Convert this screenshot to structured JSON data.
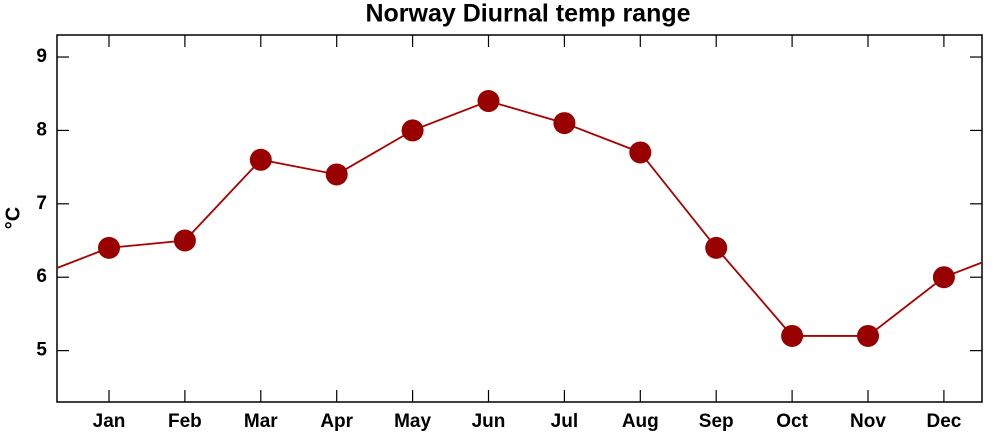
{
  "chart_data": {
    "type": "line",
    "title": "Norway Diurnal temp range",
    "y_label": "°C",
    "categories": [
      "Jan",
      "Feb",
      "Mar",
      "Apr",
      "May",
      "Jun",
      "Jul",
      "Aug",
      "Sep",
      "Oct",
      "Nov",
      "Dec"
    ],
    "values": [
      6.4,
      6.5,
      7.6,
      7.4,
      8.0,
      8.4,
      8.1,
      7.7,
      6.4,
      5.2,
      5.2,
      6.0
    ],
    "color": "#990000",
    "ylim": [
      4.3,
      9.3
    ],
    "yticks": [
      5,
      6,
      7,
      8,
      9
    ],
    "grid": false
  }
}
